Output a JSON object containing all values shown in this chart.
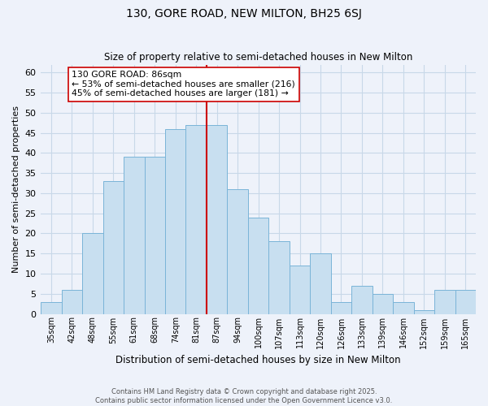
{
  "title": "130, GORE ROAD, NEW MILTON, BH25 6SJ",
  "subtitle": "Size of property relative to semi-detached houses in New Milton",
  "xlabel": "Distribution of semi-detached houses by size in New Milton",
  "ylabel": "Number of semi-detached properties",
  "categories": [
    "35sqm",
    "42sqm",
    "48sqm",
    "55sqm",
    "61sqm",
    "68sqm",
    "74sqm",
    "81sqm",
    "87sqm",
    "94sqm",
    "100sqm",
    "107sqm",
    "113sqm",
    "120sqm",
    "126sqm",
    "133sqm",
    "139sqm",
    "146sqm",
    "152sqm",
    "159sqm",
    "165sqm"
  ],
  "values": [
    3,
    6,
    20,
    33,
    39,
    39,
    46,
    47,
    47,
    31,
    24,
    18,
    12,
    15,
    3,
    7,
    5,
    3,
    1,
    6,
    6
  ],
  "bar_color": "#c8dff0",
  "bar_edge_color": "#7ab4d8",
  "grid_color": "#c8d8e8",
  "background_color": "#eef2fa",
  "vline_color": "#cc0000",
  "annotation_title": "130 GORE ROAD: 86sqm",
  "annotation_line1": "← 53% of semi-detached houses are smaller (216)",
  "annotation_line2": "45% of semi-detached houses are larger (181) →",
  "annotation_box_color": "#ffffff",
  "annotation_box_edge": "#cc0000",
  "ylim": [
    0,
    62
  ],
  "yticks": [
    0,
    5,
    10,
    15,
    20,
    25,
    30,
    35,
    40,
    45,
    50,
    55,
    60
  ],
  "footnote1": "Contains HM Land Registry data © Crown copyright and database right 2025.",
  "footnote2": "Contains public sector information licensed under the Open Government Licence v3.0."
}
